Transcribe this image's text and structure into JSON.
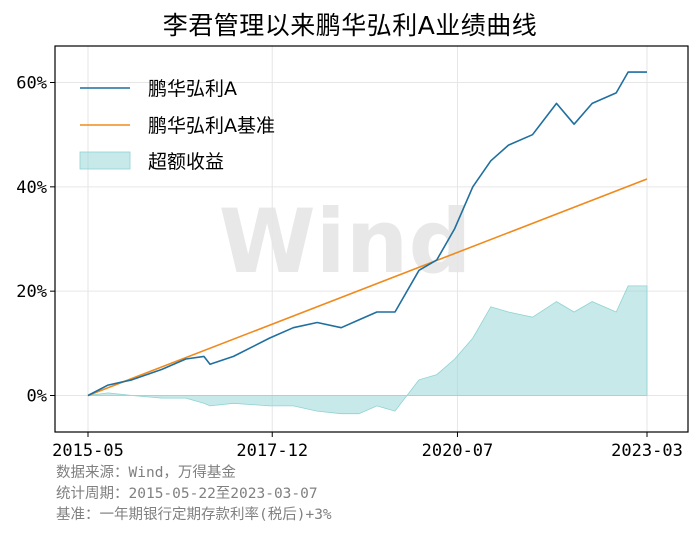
{
  "chart_data": {
    "type": "line",
    "title": "李君管理以来鹏华弘利A业绩曲线",
    "x_ticks": [
      "2015-05",
      "2017-12",
      "2020-07",
      "2023-03"
    ],
    "x_range": [
      "2015-05-22",
      "2023-03-07"
    ],
    "y_ticks": [
      "0%",
      "20%",
      "40%",
      "60%"
    ],
    "ylim": [
      -7,
      67
    ],
    "grid": true,
    "legend_position": "top-left",
    "watermark": "Wind",
    "colors": {
      "fund": "#1f6f9f",
      "benchmark": "#f08a1c",
      "excess": "#8fd3d3"
    },
    "series": [
      {
        "name": "鹏华弘利A",
        "kind": "line",
        "x": [
          "2015-05-22",
          "2015-09-01",
          "2016-01-01",
          "2016-06-01",
          "2016-10-01",
          "2017-01-01",
          "2017-02-01",
          "2017-06-01",
          "2017-12-01",
          "2018-04-01",
          "2018-08-01",
          "2018-12-01",
          "2019-03-01",
          "2019-06-01",
          "2019-09-01",
          "2020-01-01",
          "2020-04-01",
          "2020-07-01",
          "2020-10-01",
          "2021-01-01",
          "2021-04-01",
          "2021-08-01",
          "2021-12-01",
          "2022-03-01",
          "2022-06-01",
          "2022-10-01",
          "2022-12-01",
          "2023-03-07"
        ],
        "values": [
          0,
          2,
          3,
          5,
          7,
          7.5,
          6,
          7.5,
          11,
          13,
          14,
          13,
          14.5,
          16,
          16,
          24,
          26,
          32,
          40,
          45,
          48,
          50,
          56,
          52,
          56,
          58,
          62,
          62
        ]
      },
      {
        "name": "鹏华弘利A基准",
        "kind": "line",
        "x": [
          "2015-05-22",
          "2023-03-07"
        ],
        "values": [
          0,
          41.5
        ]
      },
      {
        "name": "超额收益",
        "kind": "area",
        "x": [
          "2015-05-22",
          "2015-09-01",
          "2016-01-01",
          "2016-06-01",
          "2016-10-01",
          "2017-01-01",
          "2017-02-01",
          "2017-06-01",
          "2017-12-01",
          "2018-04-01",
          "2018-08-01",
          "2018-12-01",
          "2019-03-01",
          "2019-06-01",
          "2019-09-01",
          "2020-01-01",
          "2020-04-01",
          "2020-07-01",
          "2020-10-01",
          "2021-01-01",
          "2021-04-01",
          "2021-08-01",
          "2021-12-01",
          "2022-03-01",
          "2022-06-01",
          "2022-10-01",
          "2022-12-01",
          "2023-03-07"
        ],
        "values": [
          0,
          0.5,
          0,
          -0.5,
          -0.5,
          -1.5,
          -2,
          -1.5,
          -2,
          -2,
          -3,
          -3.5,
          -3.5,
          -2,
          -3,
          3,
          4,
          7,
          11,
          17,
          16,
          15,
          18,
          16,
          18,
          16,
          21,
          21
        ]
      }
    ]
  },
  "footnotes": {
    "source": "数据来源：Wind，万得基金",
    "period": "统计周期：2015-05-22至2023-03-07",
    "benchmark": "基准：一年期银行定期存款利率(税后)+3%"
  }
}
